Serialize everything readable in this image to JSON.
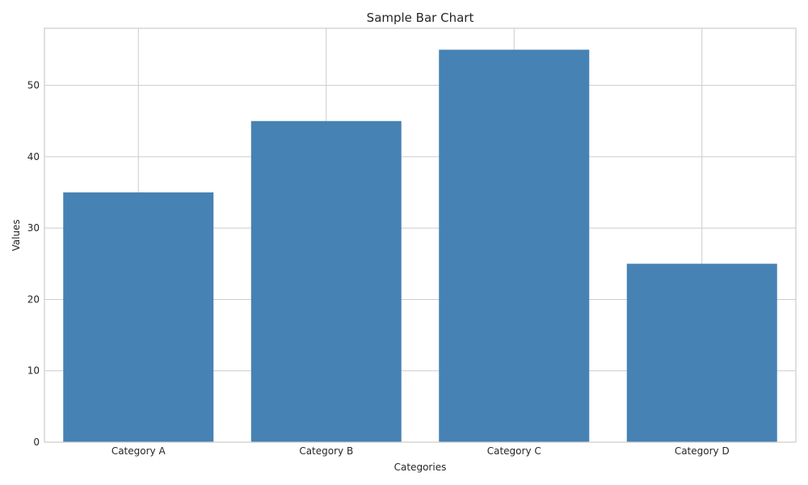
{
  "chart_data": {
    "type": "bar",
    "title": "Sample Bar Chart",
    "xlabel": "Categories",
    "ylabel": "Values",
    "categories": [
      "Category A",
      "Category B",
      "Category C",
      "Category D"
    ],
    "values": [
      35,
      45,
      55,
      25
    ],
    "ylim": [
      0,
      58
    ],
    "yticks": [
      0,
      10,
      20,
      30,
      40,
      50
    ],
    "grid": true,
    "colors": {
      "bar": "#4682b4",
      "grid": "#cccccc",
      "frame": "#cccccc",
      "text": "#262626"
    }
  }
}
